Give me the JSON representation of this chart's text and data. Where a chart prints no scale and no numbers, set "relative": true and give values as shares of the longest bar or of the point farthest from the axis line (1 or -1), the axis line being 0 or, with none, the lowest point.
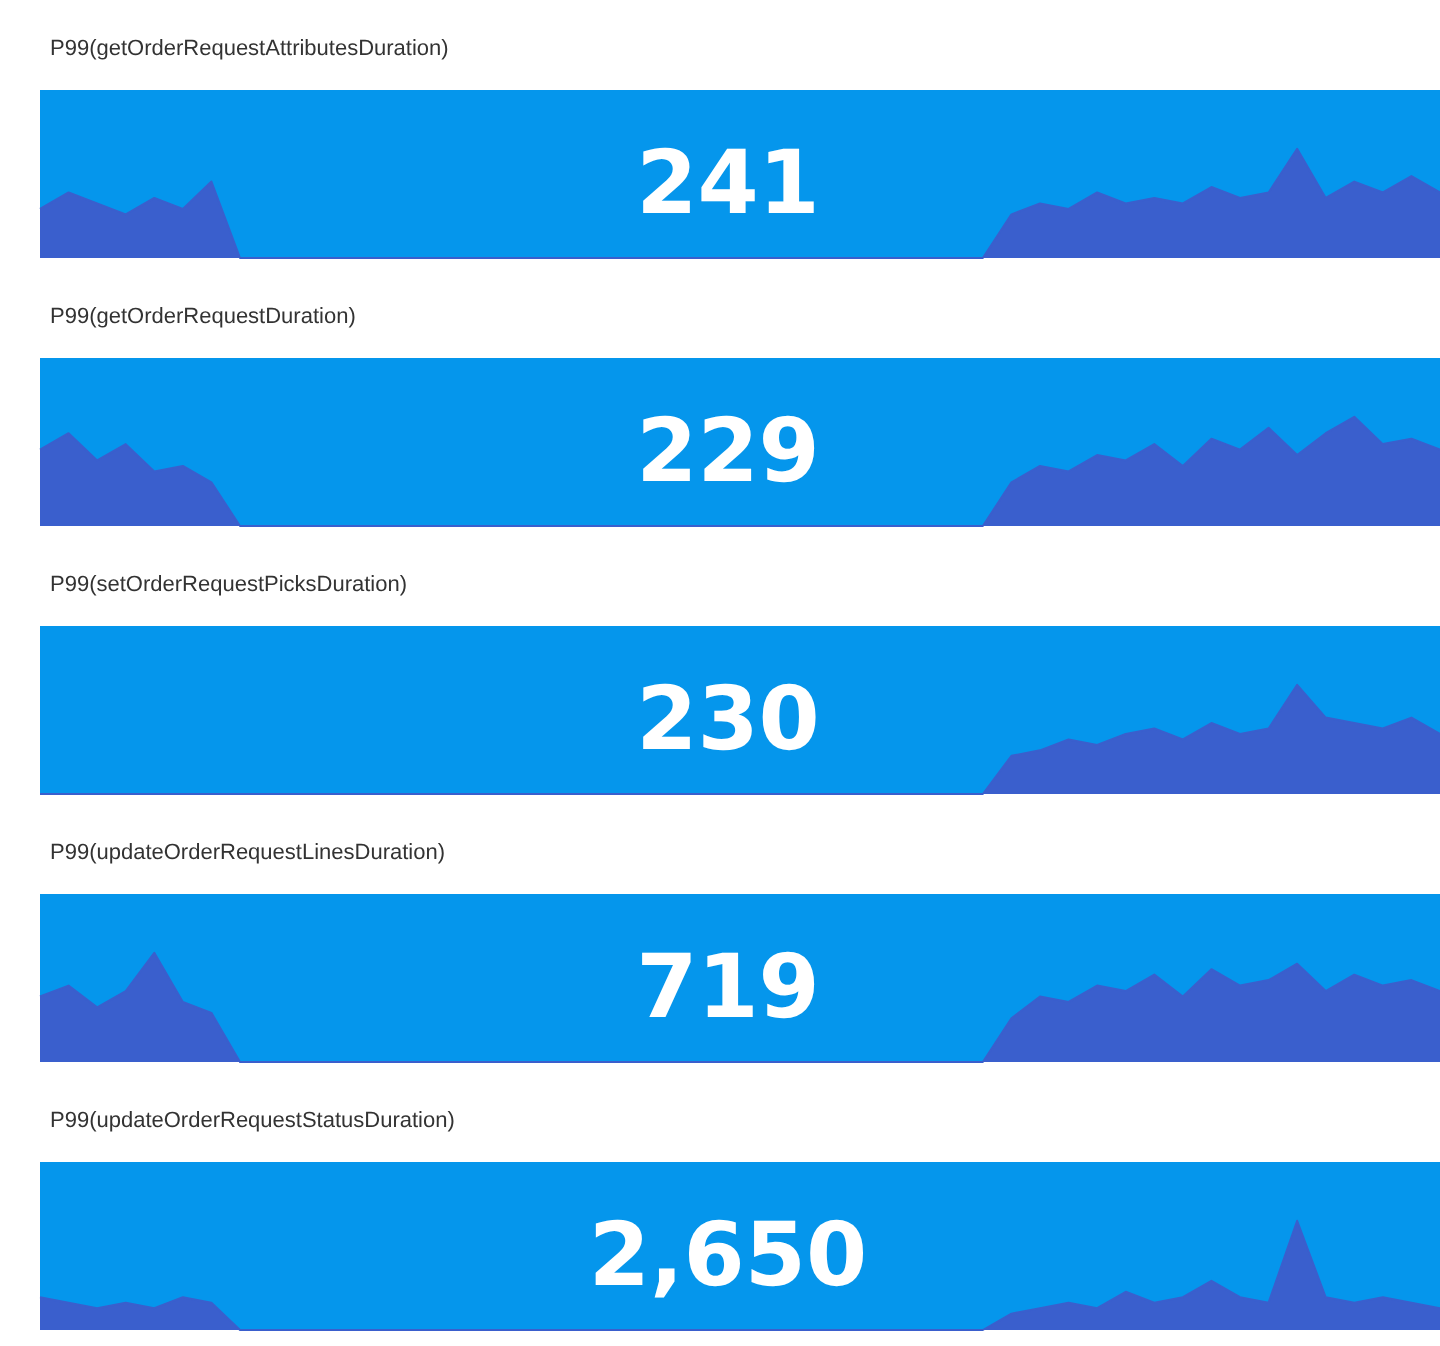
{
  "chart_data": [
    {
      "type": "area",
      "title": "P99(getOrderRequestAttributesDuration)",
      "relative": true,
      "color": "#3a5fcd",
      "annotations": [
        "241"
      ],
      "categories": [
        null,
        null,
        null,
        null,
        null,
        null,
        null,
        null,
        null,
        null,
        null,
        null,
        null,
        null,
        null,
        null,
        null,
        null,
        null,
        null,
        null,
        null,
        null,
        null,
        null,
        null,
        null,
        null,
        null,
        null,
        null,
        null,
        null,
        null,
        null,
        null,
        null,
        null,
        null,
        null,
        null,
        null,
        null,
        null,
        null,
        null,
        null,
        null,
        null,
        null
      ],
      "values": [
        0.45,
        0.6,
        0.5,
        0.4,
        0.55,
        0.45,
        0.7,
        0,
        0,
        0,
        0,
        0,
        0,
        0,
        0,
        0,
        0,
        0,
        0,
        0,
        0,
        0,
        0,
        0,
        0,
        0,
        0,
        0,
        0,
        0,
        0,
        0,
        0,
        0,
        0.4,
        0.5,
        0.45,
        0.6,
        0.5,
        0.55,
        0.5,
        0.65,
        0.55,
        0.6,
        1,
        0.55,
        0.7,
        0.6,
        0.75,
        0.6
      ]
    },
    {
      "type": "area",
      "title": "P99(getOrderRequestDuration)",
      "relative": true,
      "color": "#3a5fcd",
      "annotations": [
        "229"
      ],
      "categories": [
        null,
        null,
        null,
        null,
        null,
        null,
        null,
        null,
        null,
        null,
        null,
        null,
        null,
        null,
        null,
        null,
        null,
        null,
        null,
        null,
        null,
        null,
        null,
        null,
        null,
        null,
        null,
        null,
        null,
        null,
        null,
        null,
        null,
        null,
        null,
        null,
        null,
        null,
        null,
        null,
        null,
        null,
        null,
        null,
        null,
        null,
        null,
        null,
        null,
        null
      ],
      "values": [
        0.7,
        0.85,
        0.6,
        0.75,
        0.5,
        0.55,
        0.4,
        0,
        0,
        0,
        0,
        0,
        0,
        0,
        0,
        0,
        0,
        0,
        0,
        0,
        0,
        0,
        0,
        0,
        0,
        0,
        0,
        0,
        0,
        0,
        0,
        0,
        0,
        0,
        0.4,
        0.55,
        0.5,
        0.65,
        0.6,
        0.75,
        0.55,
        0.8,
        0.7,
        0.9,
        0.65,
        0.85,
        1,
        0.75,
        0.8,
        0.7
      ]
    },
    {
      "type": "area",
      "title": "P99(setOrderRequestPicksDuration)",
      "relative": true,
      "color": "#3a5fcd",
      "annotations": [
        "230"
      ],
      "categories": [
        null,
        null,
        null,
        null,
        null,
        null,
        null,
        null,
        null,
        null,
        null,
        null,
        null,
        null,
        null,
        null,
        null,
        null,
        null,
        null,
        null,
        null,
        null,
        null,
        null,
        null,
        null,
        null,
        null,
        null,
        null,
        null,
        null,
        null,
        null,
        null,
        null,
        null,
        null,
        null,
        null,
        null,
        null,
        null,
        null,
        null,
        null,
        null,
        null,
        null
      ],
      "values": [
        0,
        0,
        0,
        0,
        0,
        0,
        0,
        0,
        0,
        0,
        0,
        0,
        0,
        0,
        0,
        0,
        0,
        0,
        0,
        0,
        0,
        0,
        0,
        0,
        0,
        0,
        0,
        0,
        0,
        0,
        0,
        0,
        0,
        0,
        0.35,
        0.4,
        0.5,
        0.45,
        0.55,
        0.6,
        0.5,
        0.65,
        0.55,
        0.6,
        1,
        0.7,
        0.65,
        0.6,
        0.7,
        0.55
      ]
    },
    {
      "type": "area",
      "title": "P99(updateOrderRequestLinesDuration)",
      "relative": true,
      "color": "#3a5fcd",
      "annotations": [
        "719"
      ],
      "categories": [
        null,
        null,
        null,
        null,
        null,
        null,
        null,
        null,
        null,
        null,
        null,
        null,
        null,
        null,
        null,
        null,
        null,
        null,
        null,
        null,
        null,
        null,
        null,
        null,
        null,
        null,
        null,
        null,
        null,
        null,
        null,
        null,
        null,
        null,
        null,
        null,
        null,
        null,
        null,
        null,
        null,
        null,
        null,
        null,
        null,
        null,
        null,
        null,
        null,
        null
      ],
      "values": [
        0.6,
        0.7,
        0.5,
        0.65,
        1,
        0.55,
        0.45,
        0,
        0,
        0,
        0,
        0,
        0,
        0,
        0,
        0,
        0,
        0,
        0,
        0,
        0,
        0,
        0,
        0,
        0,
        0,
        0,
        0,
        0,
        0,
        0,
        0,
        0,
        0,
        0.4,
        0.6,
        0.55,
        0.7,
        0.65,
        0.8,
        0.6,
        0.85,
        0.7,
        0.75,
        0.9,
        0.65,
        0.8,
        0.7,
        0.75,
        0.65
      ]
    },
    {
      "type": "area",
      "title": "P99(updateOrderRequestStatusDuration)",
      "relative": true,
      "color": "#3a5fcd",
      "annotations": [
        "2,650"
      ],
      "categories": [
        null,
        null,
        null,
        null,
        null,
        null,
        null,
        null,
        null,
        null,
        null,
        null,
        null,
        null,
        null,
        null,
        null,
        null,
        null,
        null,
        null,
        null,
        null,
        null,
        null,
        null,
        null,
        null,
        null,
        null,
        null,
        null,
        null,
        null,
        null,
        null,
        null,
        null,
        null,
        null,
        null,
        null,
        null,
        null,
        null,
        null,
        null,
        null,
        null,
        null
      ],
      "values": [
        0.3,
        0.25,
        0.2,
        0.25,
        0.2,
        0.3,
        0.25,
        0,
        0,
        0,
        0,
        0,
        0,
        0,
        0,
        0,
        0,
        0,
        0,
        0,
        0,
        0,
        0,
        0,
        0,
        0,
        0,
        0,
        0,
        0,
        0,
        0,
        0,
        0,
        0.15,
        0.2,
        0.25,
        0.2,
        0.35,
        0.25,
        0.3,
        0.45,
        0.3,
        0.25,
        1,
        0.3,
        0.25,
        0.3,
        0.25,
        0.2
      ]
    }
  ]
}
